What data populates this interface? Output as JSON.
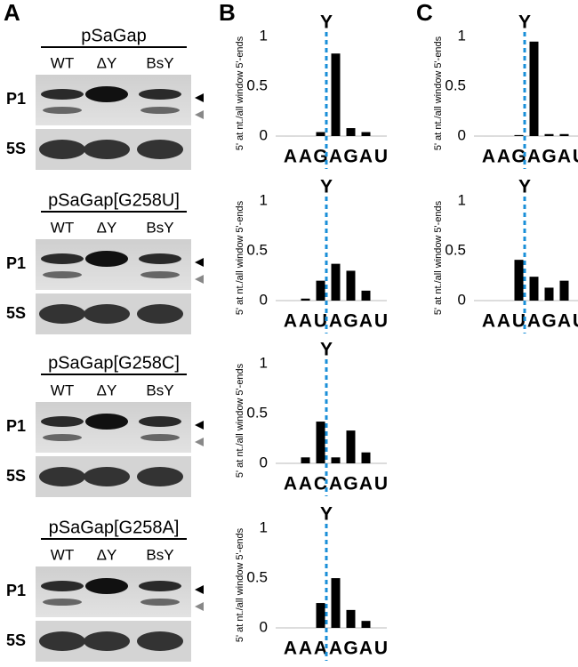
{
  "panels": [
    "A",
    "B",
    "C"
  ],
  "gels": [
    {
      "title": "pSaGap",
      "lanes": [
        "WT",
        "ΔY",
        "BsY"
      ],
      "rows": [
        "P1",
        "5S"
      ]
    },
    {
      "title": "pSaGap[G258U]",
      "lanes": [
        "WT",
        "ΔY",
        "BsY"
      ],
      "rows": [
        "P1",
        "5S"
      ]
    },
    {
      "title": "pSaGap[G258C]",
      "lanes": [
        "WT",
        "ΔY",
        "BsY"
      ],
      "rows": [
        "P1",
        "5S"
      ]
    },
    {
      "title": "pSaGap[G258A]",
      "lanes": [
        "WT",
        "ΔY",
        "BsY"
      ],
      "rows": [
        "P1",
        "5S"
      ]
    }
  ],
  "chart_data": [
    {
      "type": "bar",
      "panel": "B",
      "y_label": "5' at nt./all window 5'-ends",
      "marker_label": "Y",
      "marker_color": "#1a8fd8",
      "categories": [
        "A",
        "A",
        "G",
        "A",
        "G",
        "A",
        "U"
      ],
      "values": [
        0,
        0,
        0.04,
        0.83,
        0.08,
        0.04,
        0
      ],
      "color": "#000000",
      "ylim": [
        0,
        1.1
      ],
      "yticks": [
        0,
        0.5,
        1
      ]
    },
    {
      "type": "bar",
      "panel": "B",
      "y_label": "5' at nt./all window 5'-ends",
      "marker_label": "Y",
      "marker_color": "#1a8fd8",
      "categories": [
        "A",
        "A",
        "U",
        "A",
        "G",
        "A",
        "U"
      ],
      "values": [
        0,
        0.02,
        0.2,
        0.37,
        0.3,
        0.1,
        0
      ],
      "highlight_index": 2,
      "highlight_color": "#e8141c",
      "color": "#000000",
      "ylim": [
        0,
        1.1
      ],
      "yticks": [
        0,
        0.5,
        1
      ]
    },
    {
      "type": "bar",
      "panel": "B",
      "y_label": "5' at nt./all window 5'-ends",
      "marker_label": "Y",
      "marker_color": "#1a8fd8",
      "categories": [
        "A",
        "A",
        "C",
        "A",
        "G",
        "A",
        "U"
      ],
      "values": [
        0,
        0.06,
        0.42,
        0.06,
        0.33,
        0.11,
        0
      ],
      "highlight_index": 2,
      "highlight_color": "#e8141c",
      "color": "#000000",
      "ylim": [
        0,
        1.1
      ],
      "yticks": [
        0,
        0.5,
        1
      ]
    },
    {
      "type": "bar",
      "panel": "B",
      "y_label": "5' at nt./all window 5'-ends",
      "marker_label": "Y",
      "marker_color": "#1a8fd8",
      "categories": [
        "A",
        "A",
        "A",
        "A",
        "G",
        "A",
        "U"
      ],
      "values": [
        0,
        0,
        0.25,
        0.5,
        0.18,
        0.07,
        0
      ],
      "highlight_index": 2,
      "highlight_color": "#e8141c",
      "color": "#000000",
      "ylim": [
        0,
        1.1
      ],
      "yticks": [
        0,
        0.5,
        1
      ]
    },
    {
      "type": "bar",
      "panel": "C",
      "y_label": "5' at nt./all window 5'-ends",
      "marker_label": "Y",
      "marker_color": "#1a8fd8",
      "categories": [
        "A",
        "A",
        "G",
        "A",
        "G",
        "A",
        "U"
      ],
      "values": [
        0,
        0,
        0.01,
        0.95,
        0.02,
        0.02,
        0
      ],
      "color": "#000000",
      "ylim": [
        0,
        1.1
      ],
      "yticks": [
        0,
        0.5,
        1
      ]
    },
    {
      "type": "bar",
      "panel": "C",
      "y_label": "5' at nt./all window 5'-ends",
      "marker_label": "Y",
      "marker_color": "#1a8fd8",
      "categories": [
        "A",
        "A",
        "U",
        "A",
        "G",
        "A",
        "U"
      ],
      "values": [
        0,
        0,
        0.41,
        0.24,
        0.13,
        0.2,
        0
      ],
      "highlight_index": 2,
      "highlight_color": "#e8141c",
      "color": "#000000",
      "ylim": [
        0,
        1.1
      ],
      "yticks": [
        0,
        0.5,
        1
      ]
    }
  ]
}
